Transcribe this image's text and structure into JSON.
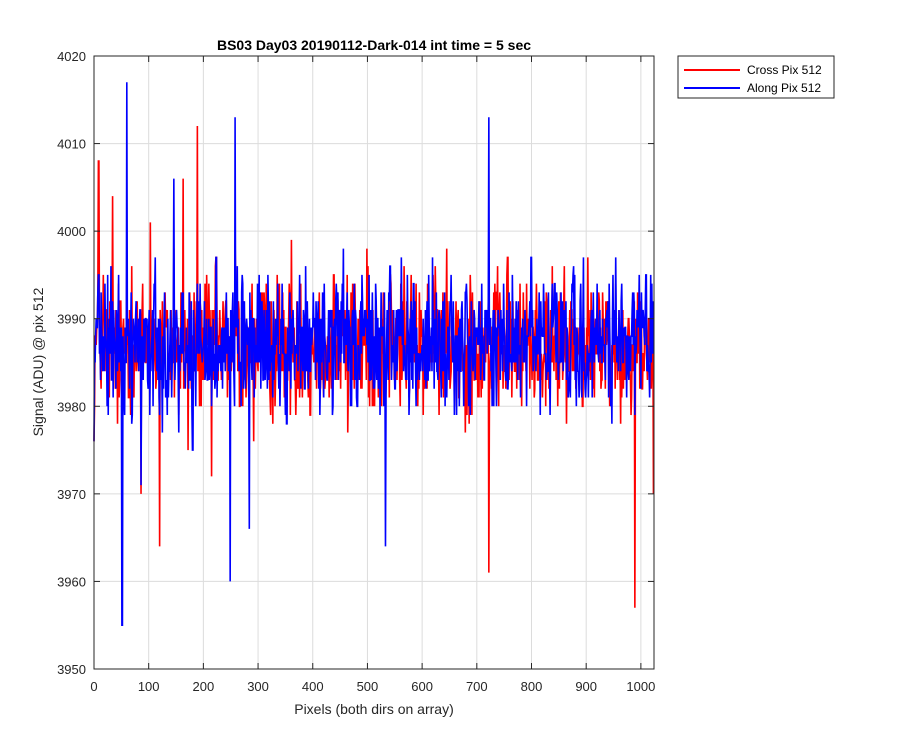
{
  "chart_data": {
    "type": "line",
    "title": "BS03 Day03 20190112-Dark-014 int time = 5 sec",
    "xlabel": "Pixels (both dirs on array)",
    "ylabel": "Signal (ADU) @ pix 512",
    "xlim": [
      0,
      1024
    ],
    "ylim": [
      3950,
      4020
    ],
    "xticks": [
      0,
      100,
      200,
      300,
      400,
      500,
      600,
      700,
      800,
      900,
      1000
    ],
    "yticks": [
      3950,
      3960,
      3970,
      3980,
      3990,
      4000,
      4010,
      4020
    ],
    "grid": true,
    "legend_position": "outside-top-right",
    "series": [
      {
        "name": "Cross Pix 512",
        "color": "#ff0000",
        "sampled_values": [
          3976,
          4008,
          3995,
          3981,
          4004,
          3978,
          3983,
          3998,
          3996,
          3984,
          3970,
          3985,
          4001,
          3990,
          3964,
          3991,
          3986,
          3998,
          3979,
          4006,
          3975,
          3988,
          4012,
          3983,
          3995,
          3972,
          3997,
          3986,
          3992,
          3983,
          3999,
          3980,
          3990,
          3985,
          3976,
          3993,
          3988,
          3991,
          3978,
          3995,
          3987,
          3983,
          3999,
          3982,
          3994,
          3986,
          3979,
          3990,
          3983,
          3992,
          3981,
          3995,
          3986,
          3990,
          3977,
          3994,
          3986,
          3982,
          3998,
          3984,
          3992,
          3987,
          3980,
          3995,
          3988,
          3983,
          3996,
          3981,
          3990,
          3986,
          3979,
          3994,
          3985,
          3991,
          3982,
          3998,
          3984,
          3992,
          3986,
          3977,
          3995,
          3983,
          3990,
          3988,
          3961,
          3993,
          3985,
          3982,
          3997,
          3986,
          3991,
          3980,
          3994,
          3986,
          3989,
          3983,
          3992,
          3986,
          3988,
          3982,
          3996,
          3984,
          3990,
          3986,
          3980,
          3997,
          3985,
          3991,
          3983,
          3987,
          3982,
          3994,
          3978,
          3988,
          3984,
          3957,
          3993,
          3984,
          3990,
          3970
        ],
        "min": 3957,
        "max": 4012,
        "mean": 3987
      },
      {
        "name": "Along Pix 512",
        "color": "#0000ff",
        "sampled_values": [
          3976,
          3995,
          3988,
          3979,
          3992,
          3984,
          3955,
          4017,
          3978,
          3992,
          3971,
          3990,
          3986,
          3997,
          3979,
          3993,
          3984,
          4006,
          3977,
          3993,
          3987,
          3975,
          3994,
          3985,
          3990,
          3980,
          3997,
          3984,
          3989,
          3960,
          4013,
          3985,
          3992,
          3966,
          3990,
          3988,
          3983,
          3995,
          3981,
          3988,
          3994,
          3978,
          3990,
          3986,
          3982,
          3996,
          3984,
          3990,
          3979,
          3994,
          3985,
          3989,
          3983,
          3998,
          3985,
          3991,
          3980,
          3995,
          3987,
          3983,
          3992,
          3986,
          3964,
          3996,
          3982,
          3991,
          3987,
          3979,
          3994,
          3986,
          3990,
          3983,
          3997,
          3984,
          3990,
          3981,
          3995,
          3988,
          3984,
          3993,
          3979,
          3990,
          3987,
          3983,
          4013,
          3980,
          3991,
          3986,
          3982,
          3995,
          3985,
          3989,
          3980,
          3997,
          3984,
          3992,
          3986,
          3979,
          3994,
          3985,
          3991,
          3982,
          3996,
          3984,
          3990,
          3986,
          3981,
          3994,
          3985,
          3990,
          3983,
          3997,
          3984,
          3989,
          3986,
          3979,
          3995,
          3988,
          3984,
          3992
        ],
        "min": 3955,
        "max": 4017,
        "mean": 3987
      }
    ]
  }
}
